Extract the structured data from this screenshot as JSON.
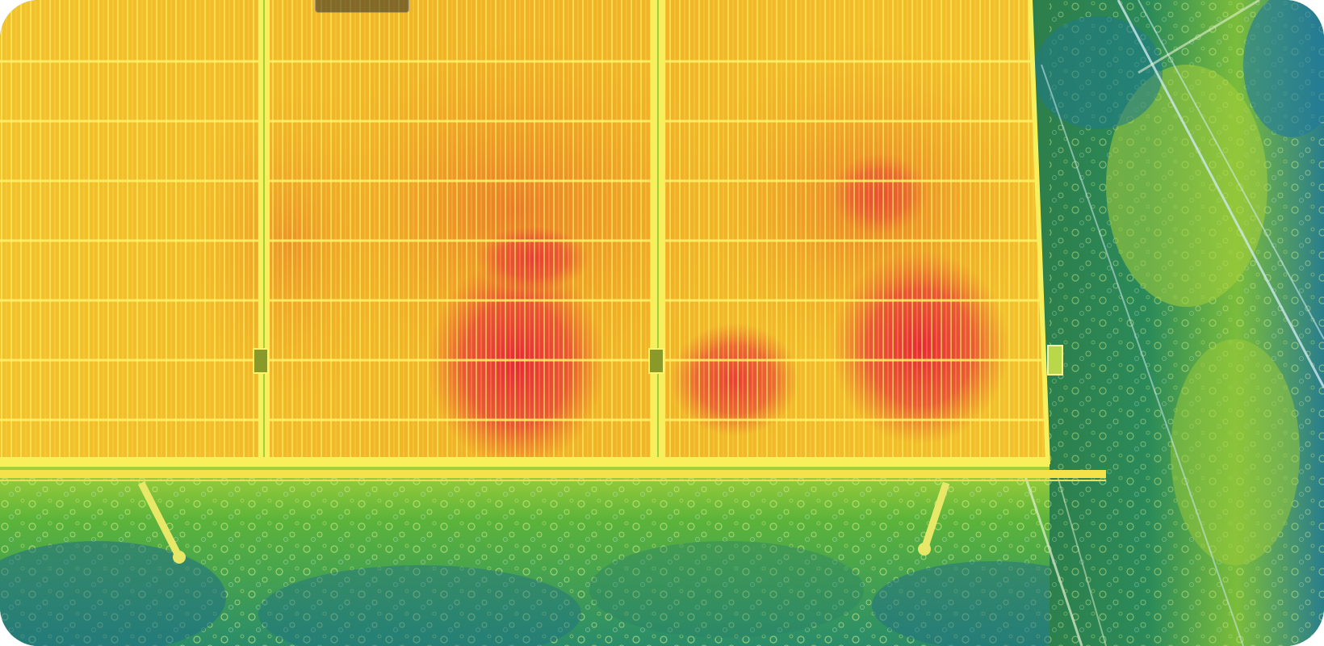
{
  "image": {
    "subject": "thermal-aerial-solar-array",
    "palette": {
      "panel_hot": "#e8203a",
      "panel_warm": "#f0a020",
      "panel_base": "#f3d12e",
      "grid_line": "#fff46a",
      "grass_mid": "#5cb43a",
      "grass_cool": "#1e7a8a",
      "ground_cool": "#1f6e86"
    }
  }
}
